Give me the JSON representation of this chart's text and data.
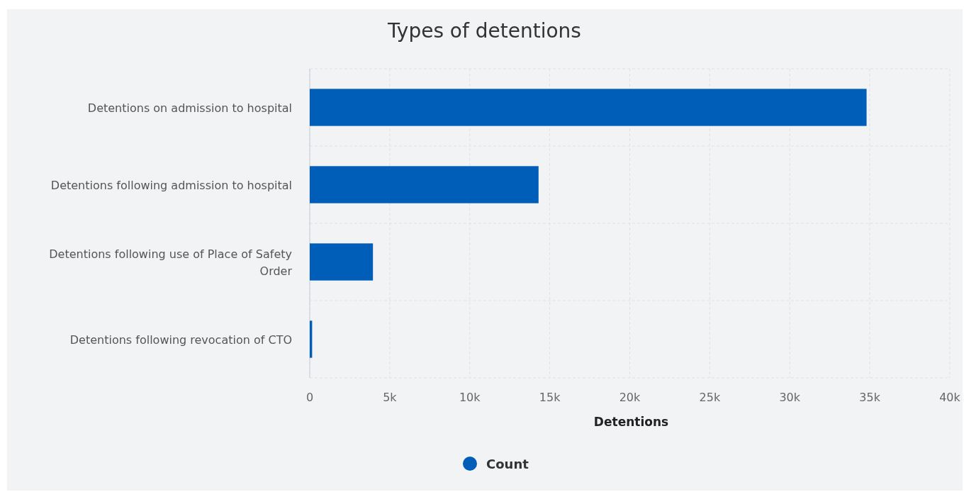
{
  "chart_data": {
    "type": "bar",
    "orientation": "horizontal",
    "title": "Types of detentions",
    "xlabel": "Detentions",
    "categories": [
      "Detentions on admission to hospital",
      "Detentions following admission to hospital",
      "Detentions following use of Place of Safety Order",
      "Detentions following revocation of CTO"
    ],
    "series": [
      {
        "name": "Count",
        "color": "#005eb8",
        "values": [
          34800,
          14300,
          3950,
          150
        ]
      }
    ],
    "xlim": [
      0,
      40000
    ],
    "xticks": [
      {
        "value": 0,
        "label": "0"
      },
      {
        "value": 5000,
        "label": "5k"
      },
      {
        "value": 10000,
        "label": "10k"
      },
      {
        "value": 15000,
        "label": "15k"
      },
      {
        "value": 20000,
        "label": "20k"
      },
      {
        "value": 25000,
        "label": "25k"
      },
      {
        "value": 30000,
        "label": "30k"
      },
      {
        "value": 35000,
        "label": "35k"
      },
      {
        "value": 40000,
        "label": "40k"
      }
    ],
    "grid": true,
    "legend": "bottom"
  }
}
